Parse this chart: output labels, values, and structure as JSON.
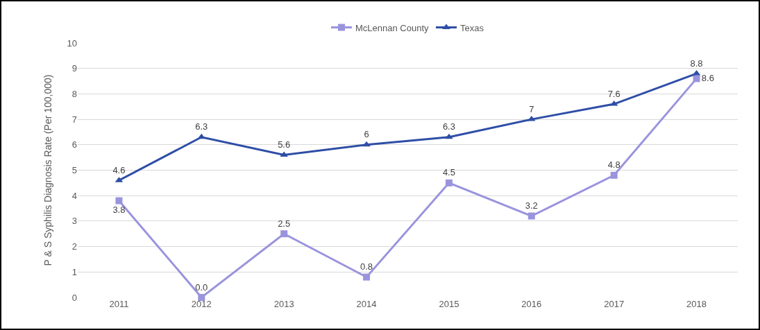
{
  "chart_data": {
    "type": "line",
    "ylabel": "P & S Syphilis Diagnosis Rate (Per 100,000)",
    "categories": [
      "2011",
      "2012",
      "2013",
      "2014",
      "2015",
      "2016",
      "2017",
      "2018"
    ],
    "ylim": [
      0,
      10
    ],
    "yticks": [
      0,
      1,
      2,
      3,
      4,
      5,
      6,
      7,
      8,
      9,
      10
    ],
    "grid": "y",
    "legend": "top",
    "line_style": "solid",
    "series": [
      {
        "name": "McLennan County",
        "color": "#9a94dd",
        "marker": "square",
        "values": [
          3.8,
          0.0,
          2.5,
          0.8,
          4.5,
          3.2,
          4.8,
          8.6
        ],
        "value_labels": [
          "3.8",
          "0.0",
          "2.5",
          "0.8",
          "4.5",
          "3.2",
          "4.8",
          "8.6"
        ]
      },
      {
        "name": "Texas",
        "color": "#2e4ea6",
        "marker": "triangle",
        "values": [
          4.6,
          6.3,
          5.6,
          6,
          6.3,
          7,
          7.6,
          8.8
        ],
        "value_labels": [
          "4.6",
          "6.3",
          "5.6",
          "6",
          "6.3",
          "7",
          "7.6",
          "8.8"
        ]
      }
    ]
  }
}
